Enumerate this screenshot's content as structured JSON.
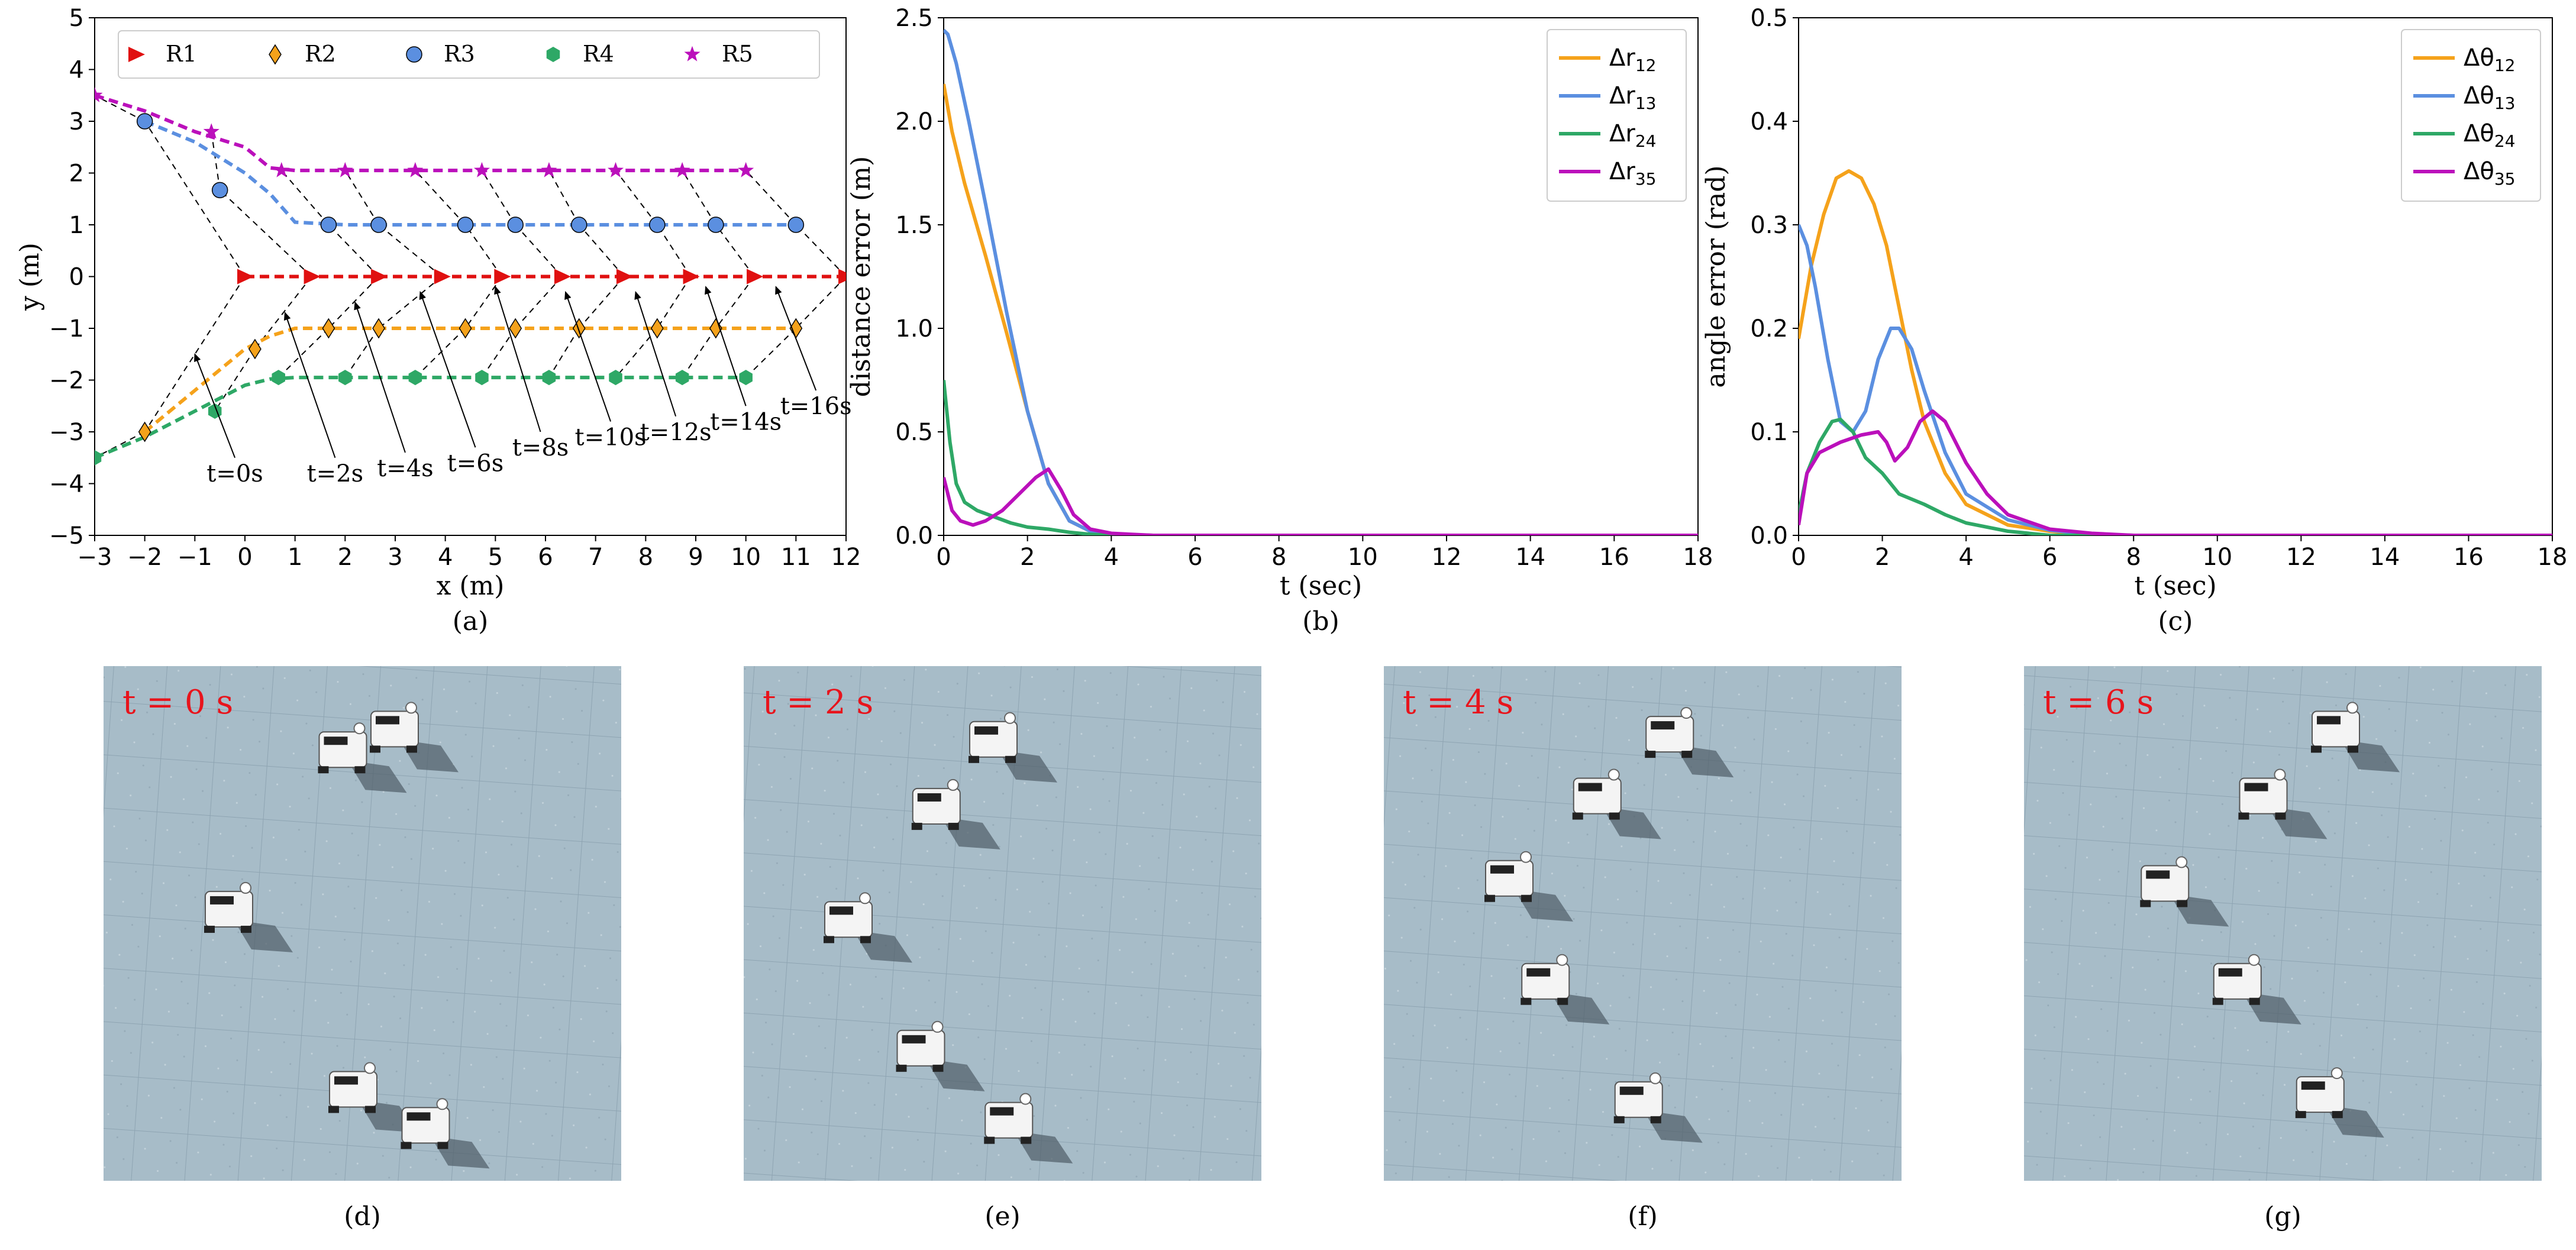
{
  "charts": [
    {
      "id": "a",
      "type": "line",
      "caption": "(a)",
      "xlabel": "x (m)",
      "ylabel": "y (m)",
      "xlim": [
        -3,
        12
      ],
      "ylim": [
        -5,
        5
      ],
      "xticks": [
        -3,
        -2,
        -1,
        0,
        1,
        2,
        3,
        4,
        5,
        6,
        7,
        8,
        9,
        10,
        11,
        12
      ],
      "yticks": [
        -5,
        -4,
        -3,
        -2,
        -1,
        0,
        1,
        2,
        3,
        4,
        5
      ],
      "legend": {
        "position": "top",
        "entries": [
          "R1",
          "R2",
          "R3",
          "R4",
          "R5"
        ]
      },
      "series": [
        {
          "name": "R1",
          "color": "#e01010",
          "marker": "triangle-right",
          "x": [
            0,
            1.33,
            2.33,
            3.33,
            4.33,
            5.33,
            6.33,
            7.33,
            8.33,
            9.33,
            10.33,
            12
          ],
          "y": [
            0,
            0,
            0,
            0,
            0,
            0,
            0,
            0,
            0,
            0,
            0,
            0
          ],
          "markers": [
            [
              0,
              0
            ],
            [
              1.33,
              0
            ],
            [
              2.67,
              0
            ],
            [
              3.93,
              0
            ],
            [
              5.13,
              0
            ],
            [
              6.33,
              0
            ],
            [
              7.57,
              0
            ],
            [
              8.9,
              0
            ],
            [
              10.17,
              0
            ],
            [
              12,
              0
            ]
          ]
        },
        {
          "name": "R2",
          "color": "#f5a21b",
          "marker": "diamond",
          "x": [
            -2,
            -1.5,
            -1,
            -0.5,
            0,
            0.5,
            1,
            2,
            11
          ],
          "y": [
            -3,
            -2.6,
            -2.2,
            -1.8,
            -1.4,
            -1.15,
            -1,
            -1,
            -1
          ],
          "markers": [
            [
              -2,
              -3
            ],
            [
              0.2,
              -1.4
            ],
            [
              1.67,
              -1
            ],
            [
              2.67,
              -1
            ],
            [
              4.4,
              -1
            ],
            [
              5.4,
              -1
            ],
            [
              6.67,
              -1
            ],
            [
              8.23,
              -1
            ],
            [
              9.4,
              -1
            ],
            [
              11,
              -1
            ]
          ]
        },
        {
          "name": "R3",
          "color": "#5b8fe0",
          "marker": "circle",
          "x": [
            -2,
            -1,
            0,
            0.5,
            1,
            2,
            11
          ],
          "y": [
            3,
            2.6,
            2,
            1.6,
            1.05,
            1,
            1
          ],
          "markers": [
            [
              -2,
              3
            ],
            [
              -0.5,
              1.67
            ],
            [
              1.67,
              1
            ],
            [
              2.67,
              1
            ],
            [
              4.4,
              1
            ],
            [
              5.4,
              1
            ],
            [
              6.67,
              1
            ],
            [
              8.23,
              1
            ],
            [
              9.4,
              1
            ],
            [
              11,
              1
            ]
          ]
        },
        {
          "name": "R4",
          "color": "#2ea866",
          "marker": "hexagon",
          "x": [
            -3,
            -2,
            -1,
            0,
            0.5,
            1,
            10
          ],
          "y": [
            -3.5,
            -3.1,
            -2.6,
            -2.1,
            -1.98,
            -1.95,
            -1.95
          ],
          "markers": [
            [
              -3,
              -3.5
            ],
            [
              -0.6,
              -2.6
            ],
            [
              0.67,
              -1.95
            ],
            [
              2,
              -1.95
            ],
            [
              3.4,
              -1.95
            ],
            [
              4.73,
              -1.95
            ],
            [
              6.07,
              -1.95
            ],
            [
              7.4,
              -1.95
            ],
            [
              8.73,
              -1.95
            ],
            [
              10,
              -1.95
            ]
          ]
        },
        {
          "name": "R5",
          "color": "#bb10bb",
          "marker": "star",
          "x": [
            -3,
            -2,
            -1,
            0,
            0.5,
            1,
            10
          ],
          "y": [
            3.5,
            3.2,
            2.8,
            2.5,
            2.1,
            2.05,
            2.05
          ],
          "markers": [
            [
              -3,
              3.5
            ],
            [
              -0.67,
              2.8
            ],
            [
              0.73,
              2.05
            ],
            [
              2,
              2.05
            ],
            [
              3.4,
              2.05
            ],
            [
              4.73,
              2.05
            ],
            [
              6.07,
              2.05
            ],
            [
              7.4,
              2.05
            ],
            [
              8.73,
              2.05
            ],
            [
              10,
              2.05
            ]
          ]
        }
      ],
      "annotations": [
        {
          "text": "t=0s",
          "arrow_from": [
            -0.2,
            -3.5
          ],
          "arrow_to": [
            -1.0,
            -1.5
          ]
        },
        {
          "text": "t=2s",
          "arrow_from": [
            1.8,
            -3.5
          ],
          "arrow_to": [
            0.8,
            -0.7
          ]
        },
        {
          "text": "t=4s",
          "arrow_from": [
            3.2,
            -3.4
          ],
          "arrow_to": [
            2.2,
            -0.5
          ]
        },
        {
          "text": "t=6s",
          "arrow_from": [
            4.6,
            -3.3
          ],
          "arrow_to": [
            3.5,
            -0.3
          ]
        },
        {
          "text": "t=8s",
          "arrow_from": [
            5.9,
            -3.0
          ],
          "arrow_to": [
            5.0,
            -0.2
          ]
        },
        {
          "text": "t=10s",
          "arrow_from": [
            7.3,
            -2.8
          ],
          "arrow_to": [
            6.4,
            -0.3
          ]
        },
        {
          "text": "t=12s",
          "arrow_from": [
            8.6,
            -2.7
          ],
          "arrow_to": [
            7.8,
            -0.3
          ]
        },
        {
          "text": "t=14s",
          "arrow_from": [
            10.0,
            -2.5
          ],
          "arrow_to": [
            9.2,
            -0.2
          ]
        },
        {
          "text": "t=16s",
          "arrow_from": [
            11.4,
            -2.2
          ],
          "arrow_to": [
            10.6,
            -0.2
          ]
        }
      ]
    },
    {
      "id": "b",
      "type": "line",
      "caption": "(b)",
      "xlabel": "t (sec)",
      "ylabel": "distance error (m)",
      "xlim": [
        0,
        18
      ],
      "ylim": [
        0,
        2.5
      ],
      "xticks": [
        0,
        2,
        4,
        6,
        8,
        10,
        12,
        14,
        16,
        18
      ],
      "yticks": [
        "0.0",
        "0.5",
        "1.0",
        "1.5",
        "2.0",
        "2.5"
      ],
      "legend": {
        "position": "top-right",
        "entries": [
          "Δr12",
          "Δr13",
          "Δr24",
          "Δr35"
        ]
      },
      "series": [
        {
          "name": "Δr12",
          "color": "#f5a21b",
          "x": [
            0,
            0.2,
            0.5,
            1.0,
            1.5,
            2.0,
            2.5,
            3.0,
            3.5,
            4.0,
            5.0,
            18
          ],
          "y": [
            2.18,
            1.95,
            1.7,
            1.35,
            0.98,
            0.6,
            0.25,
            0.07,
            0.02,
            0.005,
            0,
            0
          ]
        },
        {
          "name": "Δr13",
          "color": "#5b8fe0",
          "x": [
            0,
            0.1,
            0.3,
            0.6,
            1.0,
            1.5,
            2.0,
            2.5,
            3.0,
            3.5,
            4.0,
            5.0,
            18
          ],
          "y": [
            2.44,
            2.42,
            2.28,
            2.0,
            1.6,
            1.08,
            0.6,
            0.25,
            0.07,
            0.02,
            0.005,
            0,
            0
          ]
        },
        {
          "name": "Δr24",
          "color": "#2ea866",
          "x": [
            0,
            0.15,
            0.3,
            0.5,
            0.8,
            1.2,
            1.6,
            2.0,
            2.5,
            3.0,
            3.5,
            4.0,
            18
          ],
          "y": [
            0.75,
            0.45,
            0.25,
            0.16,
            0.12,
            0.09,
            0.06,
            0.04,
            0.03,
            0.015,
            0.005,
            0,
            0
          ]
        },
        {
          "name": "Δr35",
          "color": "#bb10bb",
          "x": [
            0,
            0.2,
            0.4,
            0.7,
            1.0,
            1.4,
            1.8,
            2.2,
            2.5,
            2.8,
            3.1,
            3.5,
            4.0,
            5.0,
            18
          ],
          "y": [
            0.28,
            0.12,
            0.07,
            0.05,
            0.07,
            0.12,
            0.2,
            0.28,
            0.32,
            0.22,
            0.1,
            0.03,
            0.01,
            0,
            0
          ]
        }
      ]
    },
    {
      "id": "c",
      "type": "line",
      "caption": "(c)",
      "xlabel": "t (sec)",
      "ylabel": "angle error (rad)",
      "xlim": [
        0,
        18
      ],
      "ylim": [
        0,
        0.5
      ],
      "xticks": [
        0,
        2,
        4,
        6,
        8,
        10,
        12,
        14,
        16,
        18
      ],
      "yticks": [
        "0.0",
        "0.1",
        "0.2",
        "0.3",
        "0.4",
        "0.5"
      ],
      "legend": {
        "position": "top-right",
        "entries": [
          "Δθ12",
          "Δθ13",
          "Δθ24",
          "Δθ35"
        ]
      },
      "series": [
        {
          "name": "Δθ12",
          "color": "#f5a21b",
          "x": [
            0,
            0.3,
            0.6,
            0.9,
            1.2,
            1.5,
            1.8,
            2.1,
            2.4,
            2.7,
            3.0,
            3.5,
            4.0,
            5.0,
            6.0,
            7.0,
            8.0,
            18
          ],
          "y": [
            0.19,
            0.26,
            0.31,
            0.345,
            0.352,
            0.345,
            0.32,
            0.28,
            0.22,
            0.16,
            0.11,
            0.06,
            0.03,
            0.01,
            0.004,
            0.001,
            0,
            0
          ]
        },
        {
          "name": "Δθ13",
          "color": "#5b8fe0",
          "x": [
            0,
            0.2,
            0.4,
            0.7,
            1.0,
            1.3,
            1.6,
            1.9,
            2.2,
            2.4,
            2.7,
            3.0,
            3.5,
            4.0,
            5.0,
            6.0,
            7.0,
            8.0,
            18
          ],
          "y": [
            0.3,
            0.28,
            0.24,
            0.17,
            0.11,
            0.1,
            0.12,
            0.17,
            0.2,
            0.2,
            0.18,
            0.14,
            0.08,
            0.04,
            0.015,
            0.005,
            0.001,
            0,
            0
          ]
        },
        {
          "name": "Δθ24",
          "color": "#2ea866",
          "x": [
            0,
            0.2,
            0.5,
            0.8,
            1.0,
            1.3,
            1.6,
            2.0,
            2.4,
            3.0,
            3.5,
            4.0,
            5.0,
            6.0,
            18
          ],
          "y": [
            0.02,
            0.06,
            0.09,
            0.11,
            0.112,
            0.1,
            0.075,
            0.06,
            0.04,
            0.03,
            0.02,
            0.012,
            0.004,
            0,
            0
          ]
        },
        {
          "name": "Δθ35",
          "color": "#bb10bb",
          "x": [
            0,
            0.2,
            0.5,
            1.0,
            1.5,
            1.9,
            2.1,
            2.3,
            2.6,
            2.9,
            3.2,
            3.5,
            4.0,
            4.5,
            5.0,
            6.0,
            7.0,
            8.0,
            18
          ],
          "y": [
            0.01,
            0.06,
            0.08,
            0.09,
            0.097,
            0.1,
            0.09,
            0.072,
            0.085,
            0.11,
            0.12,
            0.11,
            0.07,
            0.04,
            0.02,
            0.006,
            0.002,
            0,
            0
          ]
        }
      ]
    }
  ],
  "photos": [
    {
      "caption": "(d)",
      "label": "t = 0 s"
    },
    {
      "caption": "(e)",
      "label": "t = 2 s"
    },
    {
      "caption": "(f)",
      "label": "t = 4 s"
    },
    {
      "caption": "(g)",
      "label": "t = 6 s"
    }
  ]
}
